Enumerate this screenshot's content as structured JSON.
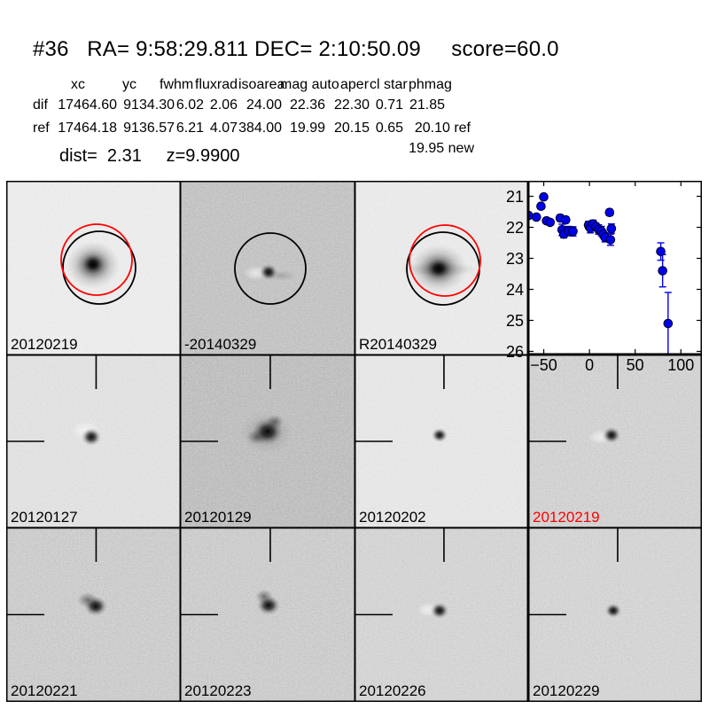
{
  "header": {
    "title": "#36   RA= 9:58:29.811 DEC= 2:10:50.09     score=60.0"
  },
  "photometry_table": {
    "headers": [
      "xc",
      "yc",
      "fwhm",
      "fluxrad",
      "isoarea",
      "mag auto",
      "aper",
      "cl star",
      "phmag"
    ],
    "rows": [
      {
        "label": "dif",
        "xc": "17464.60",
        "yc": "9134.30",
        "fwhm": "6.02",
        "fluxrad": "2.06",
        "isoarea": "24.00",
        "mag_auto": "22.36",
        "aper": "22.30",
        "cl_star": "0.71",
        "phmag": "21.85"
      },
      {
        "label": "ref",
        "xc": "17464.18",
        "yc": "9136.57",
        "fwhm": "6.21",
        "fluxrad": "4.07",
        "isoarea": "384.00",
        "mag_auto": "19.99",
        "aper": "20.15",
        "cl_star": "0.65",
        "phmag": "20.10 ref"
      }
    ],
    "phmag_new": "19.95 new",
    "dist_z_line": "dist=  2.31     z=9.9900"
  },
  "cutouts": {
    "panels": [
      {
        "label": "20120219",
        "label_color": "#000000"
      },
      {
        "label": "-20140329",
        "label_color": "#000000"
      },
      {
        "label": "R20140329",
        "label_color": "#000000"
      },
      {
        "label": "20120127",
        "label_color": "#000000"
      },
      {
        "label": "20120129",
        "label_color": "#000000"
      },
      {
        "label": "20120202",
        "label_color": "#000000"
      },
      {
        "label": "20120219",
        "label_color": "#ff0000"
      },
      {
        "label": "20120221",
        "label_color": "#000000"
      },
      {
        "label": "20120223",
        "label_color": "#000000"
      },
      {
        "label": "20120226",
        "label_color": "#000000"
      },
      {
        "label": "20120229",
        "label_color": "#000000"
      }
    ]
  },
  "chart_data": {
    "type": "scatter",
    "title": "",
    "xlabel": "",
    "ylabel": "",
    "grid": false,
    "legend": "none",
    "y_axis_inverted": true,
    "xlim": [
      -67,
      123
    ],
    "ylim": [
      26.1,
      20.5
    ],
    "xticks": [
      -50,
      0,
      50,
      100
    ],
    "xtick_labels": [
      "−50",
      "0",
      "50",
      "100"
    ],
    "yticks": [
      21,
      22,
      23,
      24,
      25,
      26
    ],
    "ytick_labels": [
      "21",
      "22",
      "23",
      "24",
      "25",
      "26"
    ],
    "series": [
      {
        "name": "lightcurve-magnitudes",
        "marker_color": "#0000ee",
        "edge_color": "#000022",
        "points": [
          {
            "x": -66.5,
            "y": 21.62,
            "e": 0.08
          },
          {
            "x": -58,
            "y": 21.67,
            "e": 0.08
          },
          {
            "x": -53,
            "y": 21.32,
            "e": 0.08
          },
          {
            "x": -50,
            "y": 21.02,
            "e": 0.08
          },
          {
            "x": -47,
            "y": 21.79,
            "e": 0.08
          },
          {
            "x": -43,
            "y": 21.84,
            "e": 0.08
          },
          {
            "x": -32,
            "y": 21.7,
            "e": 0.1
          },
          {
            "x": -26,
            "y": 21.76,
            "e": 0.1
          },
          {
            "x": -30,
            "y": 22.08,
            "e": 0.18
          },
          {
            "x": -28,
            "y": 22.22,
            "e": 0.12
          },
          {
            "x": -23,
            "y": 22.12,
            "e": 0.15
          },
          {
            "x": -18,
            "y": 22.13,
            "e": 0.15
          },
          {
            "x": -1,
            "y": 21.93,
            "e": 0.12
          },
          {
            "x": 1,
            "y": 22.03,
            "e": 0.15
          },
          {
            "x": 4,
            "y": 21.89,
            "e": 0.12
          },
          {
            "x": 7,
            "y": 21.98,
            "e": 0.12
          },
          {
            "x": 10,
            "y": 22.07,
            "e": 0.15
          },
          {
            "x": 13,
            "y": 22.12,
            "e": 0.15
          },
          {
            "x": 15,
            "y": 22.22,
            "e": 0.12
          },
          {
            "x": 17,
            "y": 22.32,
            "e": 0.15
          },
          {
            "x": 22,
            "y": 21.52,
            "e": 0.1
          },
          {
            "x": 24,
            "y": 22.04,
            "e": 0.15
          },
          {
            "x": 23,
            "y": 22.4,
            "e": 0.18
          },
          {
            "x": 78,
            "y": 22.78,
            "e": 0.28
          },
          {
            "x": 80,
            "y": 23.4,
            "e": 0.52
          },
          {
            "x": 86,
            "y": 25.1,
            "elo": 1.4,
            "ehi": 1.0
          }
        ]
      }
    ]
  }
}
